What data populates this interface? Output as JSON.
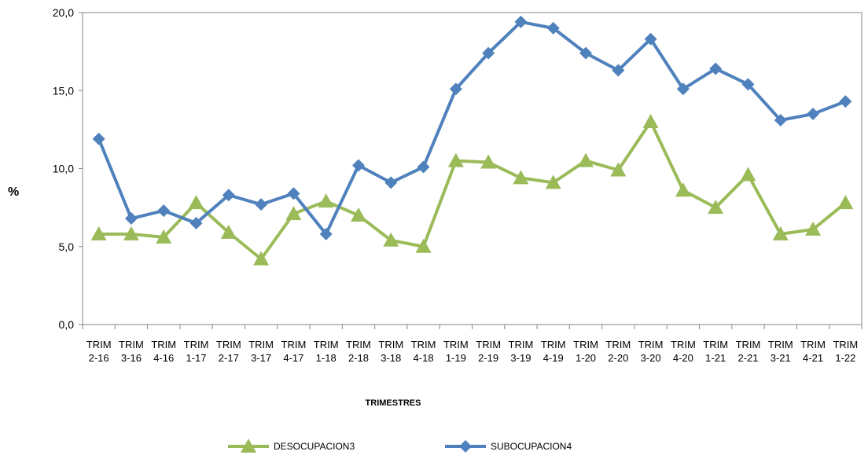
{
  "chart_data": {
    "type": "line",
    "title": "",
    "xlabel": "TRIMESTRES",
    "ylabel": "%",
    "ylim": [
      0,
      20
    ],
    "y_ticks": [
      "0,0",
      "5,0",
      "10,0",
      "15,0",
      "20,0"
    ],
    "categories": [
      [
        "TRIM",
        "2-16"
      ],
      [
        "TRIM",
        "3-16"
      ],
      [
        "TRIM",
        "4-16"
      ],
      [
        "TRIM",
        "1-17"
      ],
      [
        "TRIM",
        "2-17"
      ],
      [
        "TRIM",
        "3-17"
      ],
      [
        "TRIM",
        "4-17"
      ],
      [
        "TRIM",
        "1-18"
      ],
      [
        "TRIM",
        "2-18"
      ],
      [
        "TRIM",
        "3-18"
      ],
      [
        "TRIM",
        "4-18"
      ],
      [
        "TRIM",
        "1-19"
      ],
      [
        "TRIM",
        "2-19"
      ],
      [
        "TRIM",
        "3-19"
      ],
      [
        "TRIM",
        "4-19"
      ],
      [
        "TRIM",
        "1-20"
      ],
      [
        "TRIM",
        "2-20"
      ],
      [
        "TRIM",
        "3-20"
      ],
      [
        "TRIM",
        "4-20"
      ],
      [
        "TRIM",
        "1-21"
      ],
      [
        "TRIM",
        "2-21"
      ],
      [
        "TRIM",
        "3-21"
      ],
      [
        "TRIM",
        "4-21"
      ],
      [
        "TRIM",
        "1-22"
      ]
    ],
    "grid": false,
    "legend_position": "bottom",
    "series": [
      {
        "name": "DESOCUPACION3",
        "color": "#9BBB59",
        "marker": "triangle",
        "values": [
          5.8,
          5.8,
          5.6,
          7.8,
          5.9,
          4.2,
          7.1,
          7.9,
          7.0,
          5.4,
          5.0,
          10.5,
          10.4,
          9.4,
          9.1,
          10.5,
          9.9,
          13.0,
          8.6,
          7.5,
          9.6,
          5.8,
          6.1,
          7.8
        ]
      },
      {
        "name": "SUBOCUPACION4",
        "color": "#4F81BD",
        "marker": "diamond",
        "values": [
          11.9,
          6.8,
          7.3,
          6.5,
          8.3,
          7.7,
          8.4,
          5.8,
          10.2,
          9.1,
          10.1,
          15.1,
          17.4,
          19.4,
          19.0,
          17.4,
          16.3,
          18.3,
          15.1,
          16.4,
          15.4,
          13.1,
          13.5,
          14.3
        ]
      }
    ]
  }
}
